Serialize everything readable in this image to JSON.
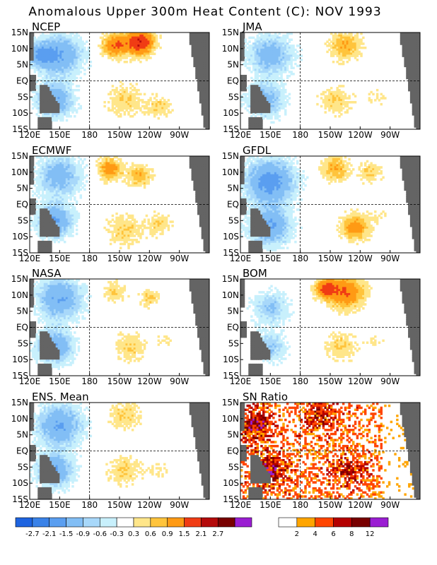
{
  "title": "Anomalous Upper 300m Heat Content (C): NOV 1993",
  "chart_data": {
    "type": "heatmap",
    "title": "Anomalous Upper 300m Heat Content (C): NOV 1993",
    "x_ticks": [
      "120E",
      "150E",
      "180",
      "150W",
      "120W",
      "90W"
    ],
    "y_ticks": [
      "15N",
      "10N",
      "5N",
      "EQ",
      "5S",
      "10S",
      "15S"
    ],
    "x_range_deg_east": [
      120,
      300
    ],
    "y_range_deg": [
      -15,
      15
    ],
    "grid": "dashed lines at equator and 180",
    "panels": [
      {
        "name": "NCEP",
        "features": [
          {
            "lon": 150,
            "lat": 8,
            "value": -1.5,
            "spread": 22
          },
          {
            "lon": 130,
            "lat": 8,
            "value": -1.2,
            "spread": 12
          },
          {
            "lon": 145,
            "lat": -6,
            "value": -1.5,
            "spread": 18
          },
          {
            "lon": 205,
            "lat": 11,
            "value": 1.5,
            "spread": 12
          },
          {
            "lon": 230,
            "lat": 12,
            "value": 2.1,
            "spread": 14
          },
          {
            "lon": 215,
            "lat": -6,
            "value": 0.6,
            "spread": 18
          },
          {
            "lon": 250,
            "lat": -8,
            "value": 0.6,
            "spread": 12
          }
        ]
      },
      {
        "name": "JMA",
        "features": [
          {
            "lon": 150,
            "lat": 8,
            "value": -1.2,
            "spread": 22
          },
          {
            "lon": 145,
            "lat": -6,
            "value": -1.2,
            "spread": 18
          },
          {
            "lon": 225,
            "lat": 11,
            "value": 0.9,
            "spread": 16
          },
          {
            "lon": 215,
            "lat": -6,
            "value": 0.6,
            "spread": 16
          },
          {
            "lon": 255,
            "lat": -5,
            "value": 0.3,
            "spread": 12
          }
        ]
      },
      {
        "name": "ECMWF",
        "features": [
          {
            "lon": 150,
            "lat": 9,
            "value": -1.2,
            "spread": 22
          },
          {
            "lon": 145,
            "lat": -5,
            "value": -1.5,
            "spread": 18
          },
          {
            "lon": 200,
            "lat": 11,
            "value": 1.2,
            "spread": 12
          },
          {
            "lon": 230,
            "lat": 9,
            "value": 0.9,
            "spread": 12
          },
          {
            "lon": 215,
            "lat": -8,
            "value": 0.6,
            "spread": 18
          },
          {
            "lon": 250,
            "lat": -6,
            "value": 0.6,
            "spread": 12
          }
        ]
      },
      {
        "name": "GFDL",
        "features": [
          {
            "lon": 150,
            "lat": 7,
            "value": -1.8,
            "spread": 24
          },
          {
            "lon": 150,
            "lat": -7,
            "value": -1.5,
            "spread": 20
          },
          {
            "lon": 215,
            "lat": 11,
            "value": 0.9,
            "spread": 14
          },
          {
            "lon": 250,
            "lat": 10,
            "value": 0.6,
            "spread": 12
          },
          {
            "lon": 235,
            "lat": -7,
            "value": 1.2,
            "spread": 14
          },
          {
            "lon": 260,
            "lat": -3,
            "value": 0.3,
            "spread": 10
          }
        ]
      },
      {
        "name": "NASA",
        "features": [
          {
            "lon": 150,
            "lat": 9,
            "value": -1.5,
            "spread": 22
          },
          {
            "lon": 145,
            "lat": -6,
            "value": -1.5,
            "spread": 18
          },
          {
            "lon": 205,
            "lat": 11,
            "value": 0.6,
            "spread": 12
          },
          {
            "lon": 240,
            "lat": 9,
            "value": 0.6,
            "spread": 10
          },
          {
            "lon": 220,
            "lat": -6,
            "value": 0.6,
            "spread": 16
          },
          {
            "lon": 255,
            "lat": -4,
            "value": 0.3,
            "spread": 10
          }
        ]
      },
      {
        "name": "BOM",
        "features": [
          {
            "lon": 150,
            "lat": 6,
            "value": -0.9,
            "spread": 18
          },
          {
            "lon": 150,
            "lat": -6,
            "value": -0.9,
            "spread": 16
          },
          {
            "lon": 225,
            "lat": 11,
            "value": 1.5,
            "spread": 18
          },
          {
            "lon": 205,
            "lat": 12,
            "value": 1.5,
            "spread": 10
          },
          {
            "lon": 220,
            "lat": -6,
            "value": 0.6,
            "spread": 16
          },
          {
            "lon": 255,
            "lat": -4,
            "value": 0.3,
            "spread": 10
          }
        ]
      },
      {
        "name": "ENS. Mean",
        "features": [
          {
            "lon": 150,
            "lat": 8,
            "value": -1.5,
            "spread": 22
          },
          {
            "lon": 145,
            "lat": -6,
            "value": -1.5,
            "spread": 18
          },
          {
            "lon": 215,
            "lat": 11,
            "value": 0.6,
            "spread": 16
          },
          {
            "lon": 215,
            "lat": -6,
            "value": 0.6,
            "spread": 16
          },
          {
            "lon": 250,
            "lat": -6,
            "value": 0.3,
            "spread": 12
          }
        ]
      },
      {
        "name": "SN Ratio",
        "scale": "sn",
        "noisy": true,
        "features": [
          {
            "lon": 135,
            "lat": 8,
            "value": 6,
            "spread": 16
          },
          {
            "lon": 150,
            "lat": -6,
            "value": 6,
            "spread": 16
          },
          {
            "lon": 200,
            "lat": 11,
            "value": 4,
            "spread": 16
          },
          {
            "lon": 230,
            "lat": -6,
            "value": 4,
            "spread": 16
          }
        ]
      }
    ],
    "colorbar_anomaly": {
      "labels": [
        "-2.7",
        "-2.1",
        "-1.5",
        "-0.9",
        "-0.6",
        "-0.3",
        "0.3",
        "0.6",
        "0.9",
        "1.5",
        "2.1",
        "2.7"
      ],
      "levels": [
        -2.7,
        -2.1,
        -1.5,
        -0.9,
        -0.6,
        -0.3,
        0.3,
        0.6,
        0.9,
        1.5,
        2.1,
        2.7
      ],
      "colors": [
        "#1e64e0",
        "#3a82e8",
        "#5a9ef0",
        "#82bef5",
        "#a8d8fa",
        "#c8f0fc",
        "#ffffff",
        "#ffe68a",
        "#ffc43c",
        "#ff9a14",
        "#f03c14",
        "#b40a0a",
        "#780000",
        "#9a1ed2"
      ]
    },
    "colorbar_sn": {
      "labels": [
        "2",
        "4",
        "6",
        "8",
        "12"
      ],
      "levels": [
        1,
        2,
        4,
        6,
        8,
        12
      ],
      "colors": [
        "#ffffff",
        "#ffa500",
        "#ff4500",
        "#b40000",
        "#780000",
        "#9a1ed2"
      ]
    }
  }
}
